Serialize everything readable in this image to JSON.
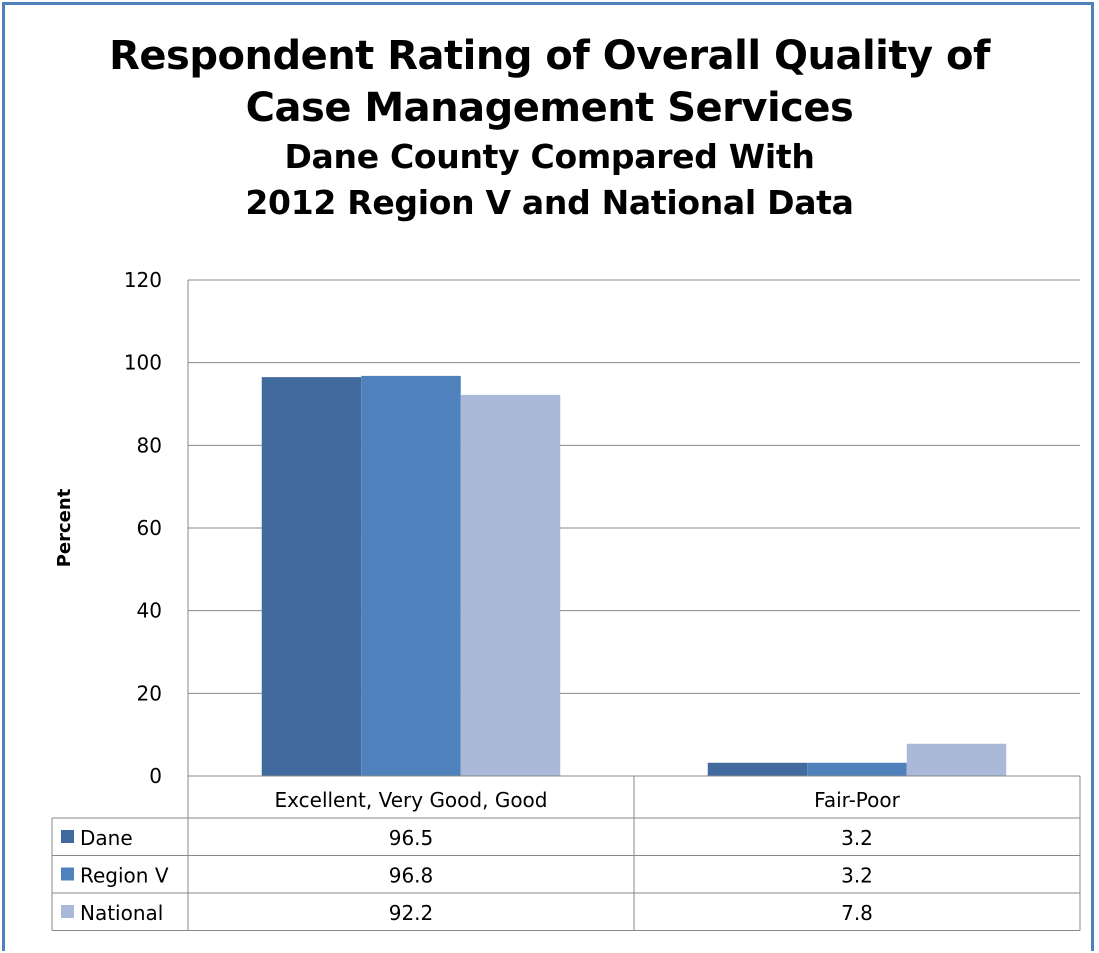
{
  "chart_data": {
    "type": "bar",
    "title": "Respondent Rating of Overall Quality of Case Management Services",
    "title_lines": [
      "Respondent Rating of Overall Quality of",
      "Case Management Services"
    ],
    "subtitle": "Dane County Compared With 2012 Region V and National Data",
    "subtitle_lines": [
      "Dane County Compared With",
      "2012 Region V and National Data"
    ],
    "xlabel": "",
    "ylabel": "Percent",
    "ylim": [
      0,
      120
    ],
    "yticks": [
      0,
      20,
      40,
      60,
      80,
      100,
      120
    ],
    "grid": true,
    "legend": "data-table",
    "categories": [
      "Excellent, Very Good, Good",
      "Fair-Poor"
    ],
    "series": [
      {
        "name": "Dane",
        "values": [
          96.5,
          3.2
        ],
        "color": "#416b9e"
      },
      {
        "name": "Region V",
        "values": [
          96.8,
          3.2
        ],
        "color": "#4f81bd"
      },
      {
        "name": "National",
        "values": [
          92.2,
          7.8
        ],
        "color": "#aab9d7"
      }
    ]
  }
}
